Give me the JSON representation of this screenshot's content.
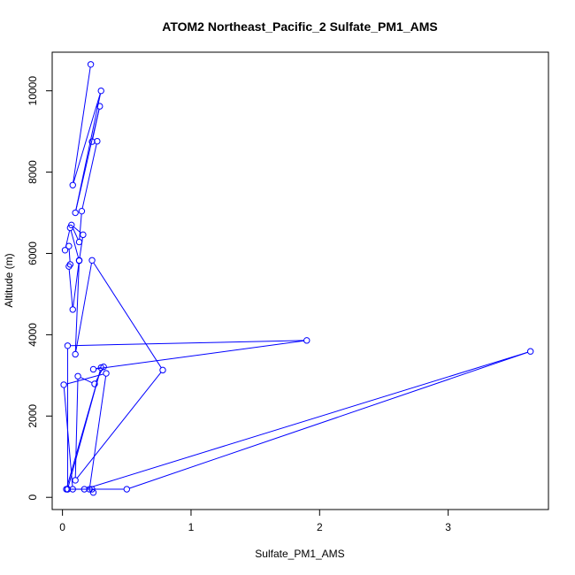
{
  "chart_data": {
    "type": "line",
    "title": "ATOM2 Northeast_Pacific_2 Sulfate_PM1_AMS",
    "xlabel": "Sulfate_PM1_AMS",
    "ylabel": "Altitude (m)",
    "xlim": [
      -0.08,
      3.78
    ],
    "ylim": [
      -300,
      10950
    ],
    "xticks": [
      0,
      1,
      2,
      3
    ],
    "yticks": [
      0,
      2000,
      4000,
      6000,
      8000,
      10000
    ],
    "grid": false,
    "legend": "none",
    "series": [
      {
        "color": "#0000ff",
        "marker": "open-circle",
        "x": [
          0.22,
          0.08,
          0.3,
          0.1,
          0.29,
          0.23,
          0.27,
          0.15,
          0.13,
          0.07,
          0.16,
          0.13,
          0.06,
          0.02,
          0.05,
          0.06,
          0.05,
          0.08,
          0.13,
          0.1,
          0.23,
          0.78,
          0.1,
          0.12,
          0.25,
          0.32,
          0.24,
          1.9,
          0.04,
          0.04,
          0.17,
          3.64,
          0.5,
          0.04,
          0.3,
          0.03,
          0.21,
          0.34,
          0.01,
          0.08,
          0.23,
          0.24
        ],
        "y": [
          10650,
          7680,
          10000,
          7000,
          9620,
          8750,
          8760,
          7040,
          6280,
          6700,
          6460,
          5820,
          6630,
          6080,
          6180,
          5730,
          5680,
          4620,
          5830,
          3520,
          5830,
          3130,
          420,
          2980,
          2790,
          3210,
          3150,
          3860,
          3730,
          200,
          200,
          3590,
          200,
          200,
          3190,
          200,
          200,
          3050,
          2770,
          200,
          200,
          120
        ]
      }
    ]
  }
}
